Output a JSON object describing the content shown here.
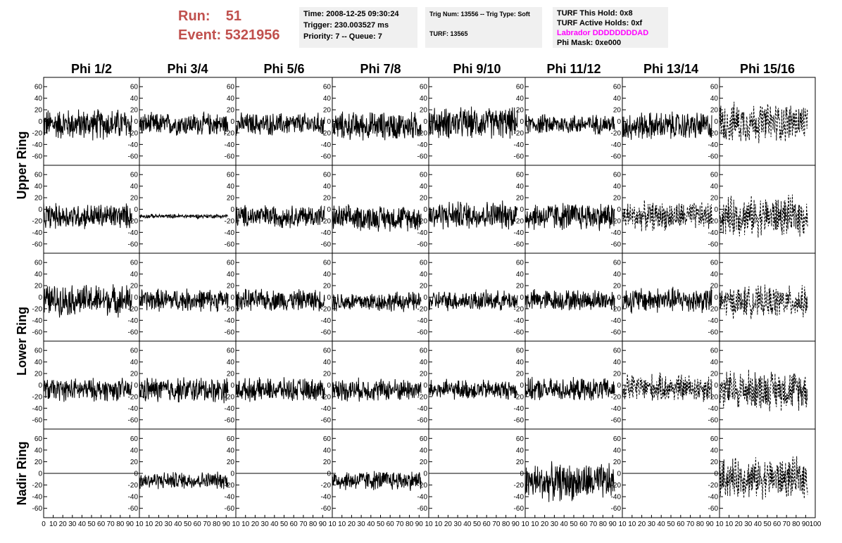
{
  "header": {
    "run_label": "Run:",
    "run_value": "51",
    "event_label": "Event:",
    "event_value": "5321956",
    "time_line": "Time: 2008-12-25 09:30:24",
    "trigger_line": "Trigger: 230.003527 ms",
    "priority_line": "Priority: 7 -- Queue: 7",
    "trig_num_line": "Trig Num: 13556 -- Trig Type: Soft",
    "turf_line": "TURF: 13565",
    "turf_hold_line": "TURF This Hold: 0x8",
    "turf_active_line": "TURF Active Holds: 0xf",
    "labrador_line": "Labrador DDDDDDDDAD",
    "phi_mask_line": "Phi Mask: 0xe000",
    "labrador_color": "#ff00ff",
    "run_color": "#c0504d"
  },
  "chart_data": {
    "type": "line",
    "columns": [
      "Phi 1/2",
      "Phi 3/4",
      "Phi 5/6",
      "Phi 7/8",
      "Phi 9/10",
      "Phi 11/12",
      "Phi 13/14",
      "Phi 15/16"
    ],
    "ring_labels": [
      {
        "name": "Upper Ring",
        "rows": [
          0,
          1
        ]
      },
      {
        "name": "Lower Ring",
        "rows": [
          2,
          3
        ]
      },
      {
        "name": "Nadir Ring",
        "rows": [
          4
        ]
      }
    ],
    "ylim": [
      -70,
      70
    ],
    "yticks": [
      -60,
      -40,
      -20,
      0,
      20,
      40,
      60
    ],
    "xlim": [
      0,
      100
    ],
    "xticks": [
      0,
      10,
      20,
      30,
      40,
      50,
      60,
      70,
      80,
      90,
      100
    ],
    "xtick_labels_first": [
      "0",
      "10",
      "20",
      "30",
      "40",
      "50",
      "60",
      "70",
      "80",
      "90",
      "10"
    ],
    "xtick_labels_middle": [
      "10",
      "20",
      "30",
      "40",
      "50",
      "60",
      "70",
      "80",
      "90",
      "10"
    ],
    "xtick_labels_last": [
      "10",
      "20",
      "30",
      "40",
      "50",
      "60",
      "70",
      "80",
      "90",
      "100"
    ],
    "line_color": "#000000",
    "cells": [
      [
        {
          "style": "solid",
          "offset": -5,
          "amp": 22
        },
        {
          "style": "solid",
          "offset": -5,
          "amp": 16
        },
        {
          "style": "solid",
          "offset": -5,
          "amp": 16
        },
        {
          "style": "solid",
          "offset": -8,
          "amp": 20
        },
        {
          "style": "solid",
          "offset": -3,
          "amp": 22
        },
        {
          "style": "solid",
          "offset": -5,
          "amp": 14
        },
        {
          "style": "solid",
          "offset": -8,
          "amp": 20
        },
        {
          "style": "dashed",
          "offset": -2,
          "amp": 28
        }
      ],
      [
        {
          "style": "solid",
          "offset": -12,
          "amp": 18
        },
        {
          "style": "solid",
          "offset": -12,
          "amp": 3
        },
        {
          "style": "solid",
          "offset": -12,
          "amp": 16
        },
        {
          "style": "solid",
          "offset": -15,
          "amp": 18
        },
        {
          "style": "solid",
          "offset": -10,
          "amp": 20
        },
        {
          "style": "solid",
          "offset": -12,
          "amp": 20
        },
        {
          "style": "dashed",
          "offset": -12,
          "amp": 20
        },
        {
          "style": "dashed",
          "offset": -12,
          "amp": 28
        }
      ],
      [
        {
          "style": "solid",
          "offset": -5,
          "amp": 22
        },
        {
          "style": "solid",
          "offset": -5,
          "amp": 16
        },
        {
          "style": "solid",
          "offset": -5,
          "amp": 15
        },
        {
          "style": "solid",
          "offset": -8,
          "amp": 14
        },
        {
          "style": "solid",
          "offset": -6,
          "amp": 14
        },
        {
          "style": "solid",
          "offset": -5,
          "amp": 15
        },
        {
          "style": "solid",
          "offset": -5,
          "amp": 18
        },
        {
          "style": "dashed",
          "offset": -8,
          "amp": 22
        }
      ],
      [
        {
          "style": "solid",
          "offset": -8,
          "amp": 16
        },
        {
          "style": "solid",
          "offset": -8,
          "amp": 18
        },
        {
          "style": "solid",
          "offset": -8,
          "amp": 16
        },
        {
          "style": "solid",
          "offset": -8,
          "amp": 16
        },
        {
          "style": "solid",
          "offset": -8,
          "amp": 14
        },
        {
          "style": "solid",
          "offset": -8,
          "amp": 16
        },
        {
          "style": "dashed",
          "offset": -5,
          "amp": 20
        },
        {
          "style": "dashed",
          "offset": -8,
          "amp": 28
        }
      ],
      [
        {
          "style": "flat",
          "offset": 0,
          "amp": 0
        },
        {
          "style": "solid",
          "offset": -12,
          "amp": 12
        },
        {
          "style": "flat",
          "offset": 0,
          "amp": 0
        },
        {
          "style": "solid",
          "offset": -12,
          "amp": 14
        },
        {
          "style": "flat",
          "offset": 0,
          "amp": 0
        },
        {
          "style": "solid",
          "offset": -15,
          "amp": 26
        },
        {
          "style": "flat",
          "offset": 0,
          "amp": 0
        },
        {
          "style": "dashed",
          "offset": -8,
          "amp": 28
        }
      ]
    ]
  }
}
